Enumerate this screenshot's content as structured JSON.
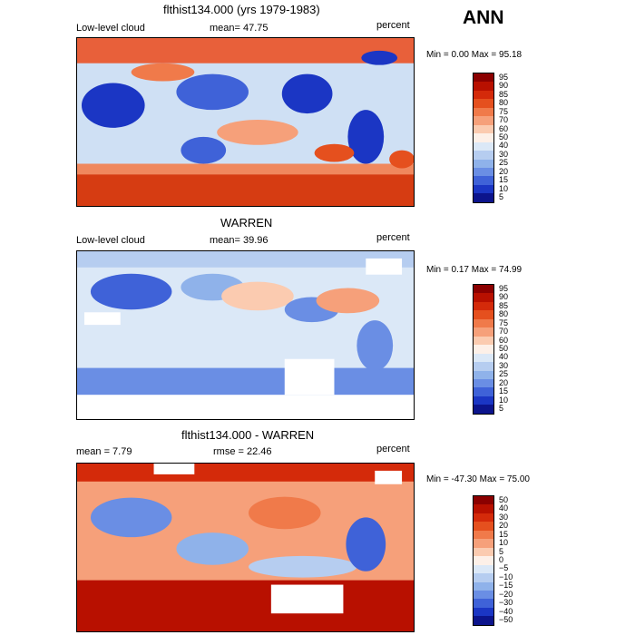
{
  "season": "ANN",
  "panels": [
    {
      "title": "flthist134.000 (yrs 1979-1983)",
      "left_label": "Low-level cloud",
      "mid_label": "mean=  47.75",
      "right_label": "percent",
      "min_max": "Min =   0.00 Max =  95.18",
      "colorbar_ticks": [
        "95",
        "90",
        "85",
        "80",
        "75",
        "70",
        "60",
        "50",
        "40",
        "30",
        "25",
        "20",
        "15",
        "10",
        "5"
      ],
      "colors": [
        "#8b0000",
        "#b81000",
        "#d42a0a",
        "#e5501e",
        "#f07a4a",
        "#f6a07a",
        "#fbcbb0",
        "#fdf0e8",
        "#dbe8f7",
        "#b6cdf0",
        "#8fb2ea",
        "#6a8ee4",
        "#3f62d8",
        "#1b36c4",
        "#0c148c"
      ]
    },
    {
      "title": "WARREN",
      "left_label": "Low-level cloud",
      "mid_label": "mean=  39.96",
      "right_label": "percent",
      "min_max": "Min =   0.17 Max =  74.99",
      "colorbar_ticks": [
        "95",
        "90",
        "85",
        "80",
        "75",
        "70",
        "60",
        "50",
        "40",
        "30",
        "25",
        "20",
        "15",
        "10",
        "5"
      ],
      "colors": [
        "#8b0000",
        "#b81000",
        "#d42a0a",
        "#e5501e",
        "#f07a4a",
        "#f6a07a",
        "#fbcbb0",
        "#fdf0e8",
        "#dbe8f7",
        "#b6cdf0",
        "#8fb2ea",
        "#6a8ee4",
        "#3f62d8",
        "#1b36c4",
        "#0c148c"
      ]
    },
    {
      "title": "flthist134.000 - WARREN",
      "left_label": "mean =   7.79",
      "mid_label": "rmse =  22.46",
      "right_label": "percent",
      "min_max": "Min = -47.30 Max =  75.00",
      "colorbar_ticks": [
        "50",
        "40",
        "30",
        "20",
        "15",
        "10",
        "5",
        "0",
        "−5",
        "−10",
        "−15",
        "−20",
        "−30",
        "−40",
        "−50"
      ],
      "colors": [
        "#8b0000",
        "#b81000",
        "#d42a0a",
        "#e5501e",
        "#f07a4a",
        "#f6a07a",
        "#fbcbb0",
        "#fdf0e8",
        "#dbe8f7",
        "#b6cdf0",
        "#8fb2ea",
        "#6a8ee4",
        "#3f62d8",
        "#1b36c4",
        "#0c148c"
      ]
    }
  ]
}
